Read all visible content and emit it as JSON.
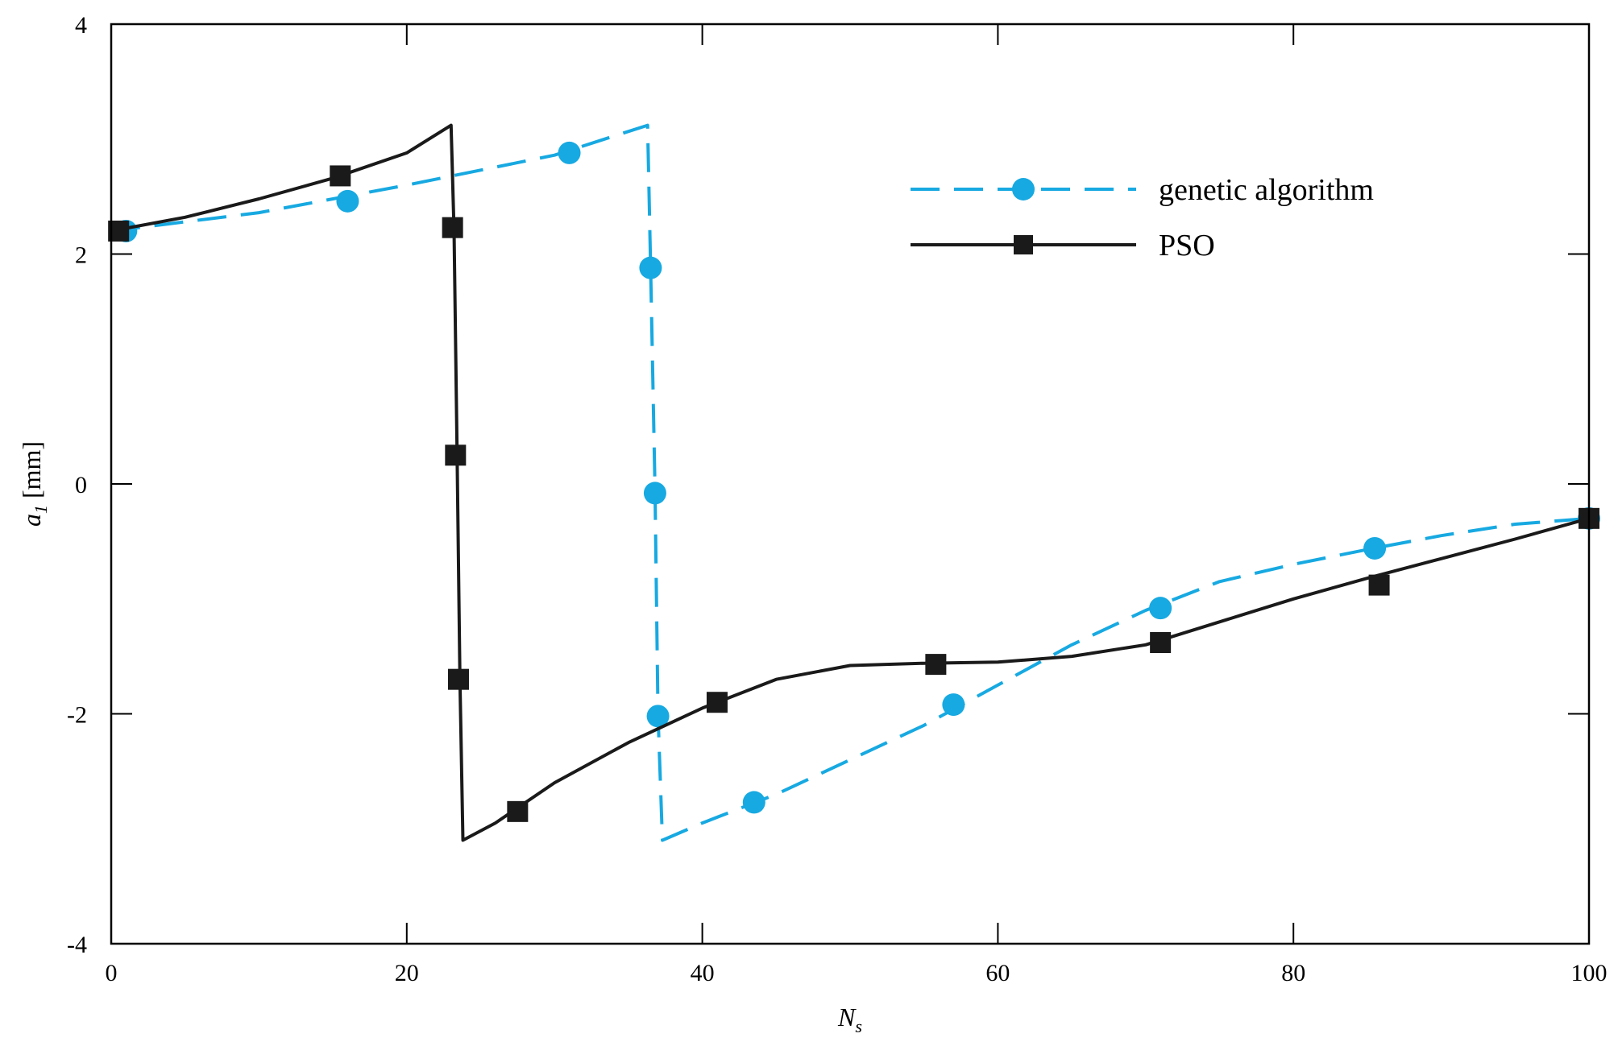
{
  "chart_data": {
    "type": "line",
    "xlabel": {
      "main": "N",
      "sub": "s"
    },
    "ylabel": {
      "main": "a",
      "sub": "1",
      "unit": " [mm]"
    },
    "xlim": [
      0,
      100
    ],
    "ylim": [
      -4,
      4
    ],
    "xticks": [
      0,
      20,
      40,
      60,
      80,
      100
    ],
    "yticks": [
      -4,
      -2,
      0,
      2,
      4
    ],
    "grid": false,
    "legend_position": "top-right",
    "series": [
      {
        "name": "genetic algorithm",
        "color": "#17a9e1",
        "line_style": "dashed",
        "marker": "circle",
        "x": [
          0,
          10,
          20,
          30,
          36.3,
          36.5,
          36.8,
          37.0,
          37.3,
          40,
          45,
          50,
          55,
          60,
          65,
          70,
          75,
          80,
          85,
          90,
          95,
          100
        ],
        "y": [
          2.2,
          2.36,
          2.6,
          2.86,
          3.12,
          1.9,
          -0.05,
          -2.0,
          -3.1,
          -2.95,
          -2.7,
          -2.4,
          -2.1,
          -1.75,
          -1.4,
          -1.1,
          -0.85,
          -0.7,
          -0.57,
          -0.45,
          -0.35,
          -0.3
        ],
        "marker_x": [
          1,
          16,
          31,
          36.5,
          36.8,
          37,
          43.5,
          57,
          71,
          85.5,
          100
        ],
        "marker_y": [
          2.2,
          2.46,
          2.88,
          1.88,
          -0.08,
          -2.02,
          -2.77,
          -1.92,
          -1.08,
          -0.56,
          -0.3
        ]
      },
      {
        "name": "PSO",
        "color": "#1a1a1a",
        "line_style": "solid",
        "marker": "square",
        "x": [
          0,
          5,
          10,
          15,
          20,
          23.0,
          23.2,
          23.4,
          23.6,
          23.8,
          26,
          30,
          35,
          40,
          45,
          50,
          55,
          60,
          65,
          70,
          75,
          80,
          85,
          90,
          95,
          100
        ],
        "y": [
          2.2,
          2.32,
          2.48,
          2.66,
          2.88,
          3.12,
          2.2,
          0.3,
          -1.7,
          -3.1,
          -2.95,
          -2.6,
          -2.25,
          -1.95,
          -1.7,
          -1.58,
          -1.56,
          -1.55,
          -1.5,
          -1.4,
          -1.2,
          -1.0,
          -0.82,
          -0.65,
          -0.48,
          -0.3
        ],
        "marker_x": [
          0.5,
          15.5,
          23.1,
          23.3,
          23.5,
          27.5,
          41,
          55.8,
          71,
          85.8,
          100
        ],
        "marker_y": [
          2.2,
          2.68,
          2.23,
          0.25,
          -1.7,
          -2.85,
          -1.9,
          -1.57,
          -1.38,
          -0.88,
          -0.3
        ]
      }
    ]
  }
}
